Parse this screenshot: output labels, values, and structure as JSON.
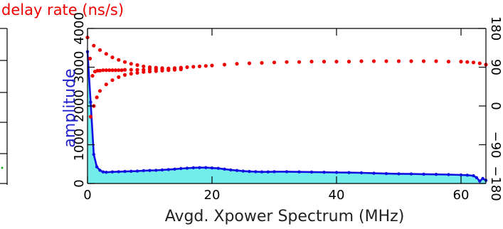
{
  "header": {
    "text": "delay rate (ns/s)"
  },
  "chart_data": {
    "type": "scatter",
    "title": "",
    "xlabel": "Avgd. Xpower Spectrum (MHz)",
    "ylabel": "amplitude",
    "xlim": [
      0,
      64
    ],
    "ylim": [
      0,
      4000
    ],
    "y2lim": [
      -180,
      180
    ],
    "x_ticks": [
      0,
      20,
      40,
      60
    ],
    "y_ticks": [
      0,
      1000,
      2000,
      3000,
      4000
    ],
    "y2_ticks": [
      -180,
      -90,
      0,
      90,
      180
    ],
    "grid": false,
    "legend": "none",
    "colors": {
      "amplitude": "#1010e0",
      "amplitude_fill": "#00dddd",
      "phase": "#ee0000",
      "text": "#ee0000",
      "label": "#2020cc",
      "axis": "#000000"
    },
    "series": [
      {
        "role": "amplitude",
        "axis": "left",
        "x": [
          0.0,
          0.5,
          1.0,
          1.5,
          2.0,
          2.5,
          3,
          4,
          5,
          6,
          7,
          8,
          9,
          10,
          11,
          12,
          13,
          14,
          15,
          16,
          17,
          18,
          19,
          20,
          21,
          22,
          23,
          24,
          25,
          26,
          27,
          28,
          29,
          30,
          32,
          34,
          36,
          38,
          40,
          42,
          44,
          46,
          48,
          50,
          52,
          54,
          56,
          58,
          60,
          61,
          62,
          62.5,
          63,
          63.5,
          64
        ],
        "y": [
          3400,
          2100,
          750,
          430,
          340,
          300,
          290,
          300,
          305,
          310,
          315,
          320,
          330,
          335,
          340,
          350,
          360,
          370,
          385,
          395,
          405,
          410,
          410,
          400,
          390,
          370,
          350,
          335,
          320,
          310,
          305,
          300,
          300,
          305,
          305,
          300,
          295,
          290,
          285,
          280,
          275,
          265,
          255,
          250,
          245,
          240,
          235,
          230,
          220,
          215,
          200,
          150,
          60,
          130,
          80
        ]
      },
      {
        "role": "phase",
        "axis": "right",
        "x": [
          0.0,
          0.4,
          0.8,
          1.2,
          1.6,
          2.0,
          2.5,
          3,
          3.5,
          4,
          4.5,
          5,
          5.5,
          6,
          7,
          8,
          9,
          10,
          11,
          12,
          13,
          14,
          15,
          16,
          17,
          18,
          19,
          20,
          22,
          24,
          26,
          28,
          30,
          32,
          34,
          36,
          38,
          40,
          42,
          44,
          46,
          48,
          50,
          52,
          54,
          56,
          58,
          60,
          61,
          62,
          63,
          64
        ],
        "y": [
          159,
          110,
          70,
          80,
          82,
          82,
          83,
          83,
          83,
          83,
          83,
          83,
          83,
          84,
          84,
          84,
          84,
          85,
          85,
          86,
          87,
          88,
          89,
          90,
          91,
          92,
          93,
          94,
          96,
          98,
          99,
          100,
          101,
          102,
          102,
          103,
          103,
          103,
          103,
          104,
          104,
          104,
          104,
          104,
          104,
          104,
          103,
          103,
          102,
          101,
          99,
          96
        ]
      },
      {
        "role": "phase-upper-branch",
        "axis": "right",
        "x": [
          1,
          2,
          3,
          4,
          5,
          6,
          7,
          8,
          9,
          10,
          11,
          12,
          13,
          14,
          15
        ],
        "y": [
          140,
          130,
          121,
          113,
          107,
          102,
          98,
          95,
          92,
          90,
          89,
          88,
          87,
          87,
          88
        ]
      },
      {
        "role": "phase-lower-branch",
        "axis": "right",
        "x": [
          0.5,
          1,
          1.5,
          2,
          3,
          4,
          5,
          6,
          7,
          8,
          9,
          10,
          11,
          12,
          13,
          14,
          15
        ],
        "y": [
          -25,
          0,
          20,
          35,
          50,
          60,
          67,
          72,
          75,
          77,
          79,
          80,
          81,
          82,
          83,
          84,
          85
        ]
      }
    ]
  }
}
